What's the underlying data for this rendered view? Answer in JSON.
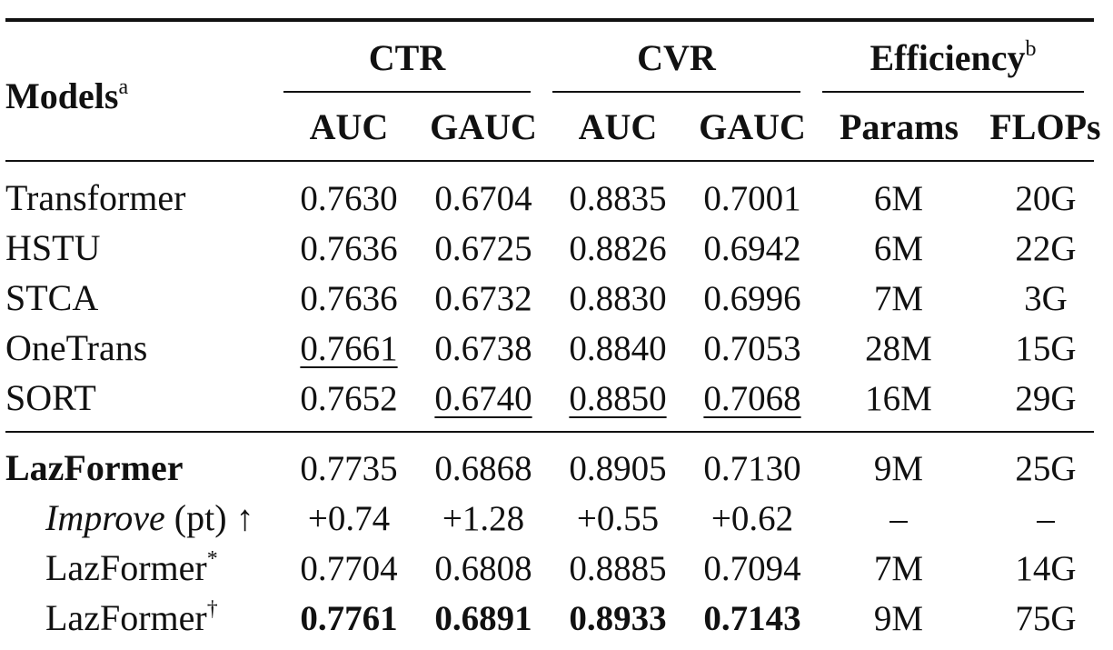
{
  "header": {
    "models": "Models",
    "models_mark": "a",
    "ctr": "CTR",
    "cvr": "CVR",
    "efficiency": "Efficiency",
    "efficiency_mark": "b",
    "auc": "AUC",
    "gauc": "GAUC",
    "params": "Params",
    "flops": "FLOPs"
  },
  "rows": [
    {
      "model": "Transformer",
      "ctr_auc": "0.7630",
      "ctr_gauc": "0.6704",
      "cvr_auc": "0.8835",
      "cvr_gauc": "0.7001",
      "params": "6M",
      "flops": "20G"
    },
    {
      "model": "HSTU",
      "ctr_auc": "0.7636",
      "ctr_gauc": "0.6725",
      "cvr_auc": "0.8826",
      "cvr_gauc": "0.6942",
      "params": "6M",
      "flops": "22G"
    },
    {
      "model": "STCA",
      "ctr_auc": "0.7636",
      "ctr_gauc": "0.6732",
      "cvr_auc": "0.8830",
      "cvr_gauc": "0.6996",
      "params": "7M",
      "flops": "3G"
    },
    {
      "model": "OneTrans",
      "ctr_auc": "0.7661",
      "ctr_gauc": "0.6738",
      "cvr_auc": "0.8840",
      "cvr_gauc": "0.7053",
      "params": "28M",
      "flops": "15G"
    },
    {
      "model": "SORT",
      "ctr_auc": "0.7652",
      "ctr_gauc": "0.6740",
      "cvr_auc": "0.8850",
      "cvr_gauc": "0.7068",
      "params": "16M",
      "flops": "29G"
    },
    {
      "model": "LazFormer",
      "ctr_auc": "0.7735",
      "ctr_gauc": "0.6868",
      "cvr_auc": "0.8905",
      "cvr_gauc": "0.7130",
      "params": "9M",
      "flops": "25G"
    },
    {
      "model": "Improve",
      "model_suffix": "(pt) ↑",
      "ctr_auc": "+0.74",
      "ctr_gauc": "+1.28",
      "cvr_auc": "+0.55",
      "cvr_gauc": "+0.62",
      "params": "–",
      "flops": "–"
    },
    {
      "model": "LazFormer",
      "model_mark": "*",
      "ctr_auc": "0.7704",
      "ctr_gauc": "0.6808",
      "cvr_auc": "0.8885",
      "cvr_gauc": "0.7094",
      "params": "7M",
      "flops": "14G"
    },
    {
      "model": "LazFormer",
      "model_mark": "†",
      "ctr_auc": "0.7761",
      "ctr_gauc": "0.6891",
      "cvr_auc": "0.8933",
      "cvr_gauc": "0.7143",
      "params": "9M",
      "flops": "75G"
    }
  ]
}
